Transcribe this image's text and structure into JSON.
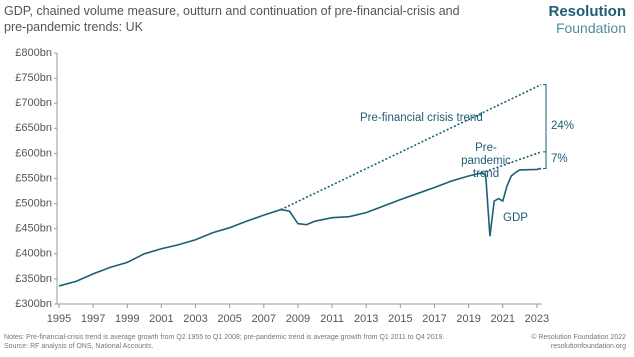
{
  "chart_data": {
    "type": "line",
    "title": "GDP, chained volume measure, outturn and continuation of pre-financial-crisis and pre-pandemic trends: UK",
    "logo": [
      "Resolution",
      "Foundation"
    ],
    "xlim": [
      1995,
      2023.3
    ],
    "xticks": [
      1995,
      1997,
      1999,
      2001,
      2003,
      2005,
      2007,
      2009,
      2011,
      2013,
      2015,
      2017,
      2019,
      2021,
      2023
    ],
    "ylim": [
      300,
      800
    ],
    "yticks": [
      {
        "value": 300,
        "label": "£300bn"
      },
      {
        "value": 350,
        "label": "£350bn"
      },
      {
        "value": 400,
        "label": "£400bn"
      },
      {
        "value": 450,
        "label": "£450bn"
      },
      {
        "value": 500,
        "label": "£500bn"
      },
      {
        "value": 550,
        "label": "£550bn"
      },
      {
        "value": 600,
        "label": "£600bn"
      },
      {
        "value": 650,
        "label": "£650bn"
      },
      {
        "value": 700,
        "label": "£700bn"
      },
      {
        "value": 750,
        "label": "£750bn"
      },
      {
        "value": 800,
        "label": "£800bn"
      }
    ],
    "grid": false,
    "series": [
      {
        "name": "GDP",
        "color": "#1d5e75",
        "dashed": false,
        "x": [
          1995,
          1996,
          1997,
          1998,
          1999,
          2000,
          2001,
          2002,
          2003,
          2004,
          2005,
          2006,
          2007,
          2008,
          2008.5,
          2009,
          2009.5,
          2010,
          2011,
          2012,
          2013,
          2014,
          2015,
          2016,
          2017,
          2018,
          2019,
          2019.75,
          2020,
          2020.25,
          2020.5,
          2020.75,
          2021,
          2021.25,
          2021.5,
          2021.75,
          2022,
          2023,
          2023.25
        ],
        "values": [
          336,
          345,
          360,
          373,
          383,
          400,
          410,
          418,
          428,
          442,
          452,
          465,
          477,
          488,
          485,
          460,
          458,
          465,
          472,
          474,
          482,
          495,
          508,
          520,
          532,
          545,
          555,
          561,
          557,
          435,
          505,
          510,
          505,
          535,
          555,
          562,
          567,
          568,
          570
        ]
      },
      {
        "name": "Pre-financial crisis trend",
        "color": "#1d5e75",
        "dashed": true,
        "x": [
          2008,
          2023.25
        ],
        "values": [
          488,
          737
        ]
      },
      {
        "name": "Pre-pandemic trend",
        "color": "#1d5e75",
        "dashed": true,
        "x": [
          2019.75,
          2023.25
        ],
        "values": [
          561,
          603
        ]
      }
    ],
    "annotations": [
      "24%",
      "7%"
    ],
    "notes": "Notes: Pre-financial-crisis trend is average growth from Q2 1955 to Q1 2008; pre-pandemic trend is average growth from Q1 2011 to Q4 2019.",
    "source": "Source: RF analysis of ONS, National Accounts.",
    "credit": [
      "© Resolution Foundation 2022",
      "resolutionfoundation.org"
    ]
  }
}
